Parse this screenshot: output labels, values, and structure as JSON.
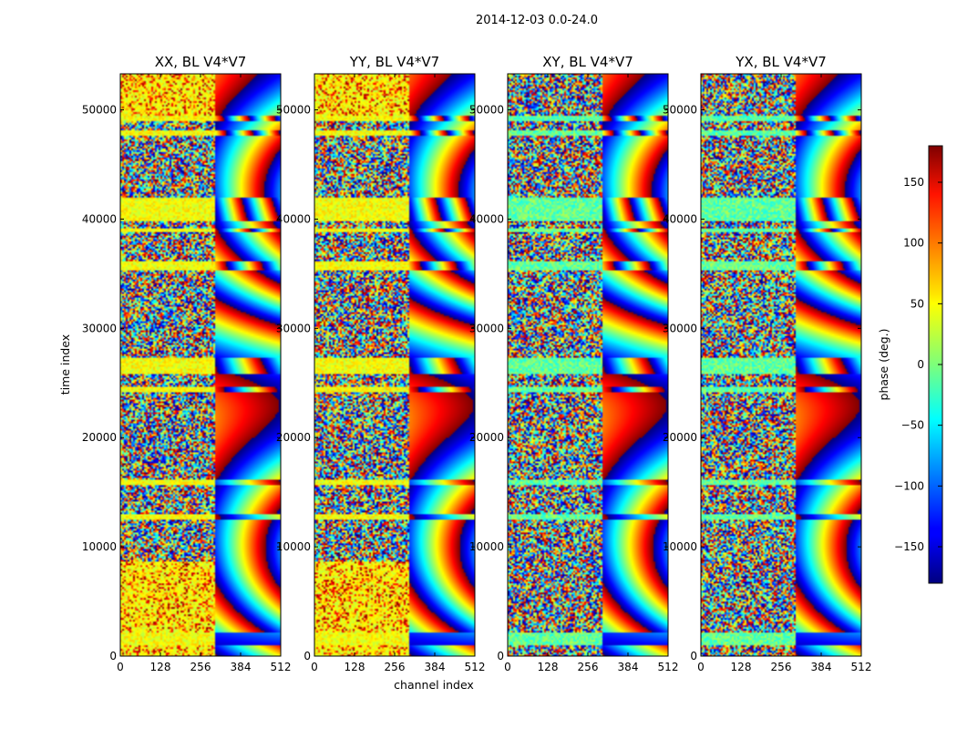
{
  "figure": {
    "suptitle": "2014-12-03 0.0-24.0",
    "xlabel": "channel index",
    "ylabel": "time index",
    "colorbar_label": "phase (deg.)"
  },
  "chart_data": {
    "type": "heatmap",
    "colormap": "jet",
    "panels": [
      {
        "title": "XX, BL V4*V7",
        "pol": "XX"
      },
      {
        "title": "YY, BL V4*V7",
        "pol": "YY"
      },
      {
        "title": "XY, BL V4*V7",
        "pol": "XY"
      },
      {
        "title": "YX, BL V4*V7",
        "pol": "YX"
      }
    ],
    "xlim": [
      0,
      512
    ],
    "ylim": [
      0,
      53300
    ],
    "xticks": [
      0,
      128,
      256,
      384,
      512
    ],
    "yticks": [
      0,
      10000,
      20000,
      30000,
      40000,
      50000
    ],
    "color_range": [
      -180,
      180
    ],
    "colorbar_ticks": [
      -150,
      -100,
      -50,
      0,
      50,
      100,
      150
    ],
    "flagged_time_ranges": [
      [
        1000,
        2200
      ],
      [
        12500,
        13000
      ],
      [
        15600,
        16200
      ],
      [
        24200,
        24600
      ],
      [
        25900,
        27300
      ],
      [
        35300,
        36100
      ],
      [
        38800,
        39200
      ],
      [
        39800,
        41900
      ],
      [
        47600,
        48200
      ],
      [
        49000,
        49500
      ]
    ]
  }
}
